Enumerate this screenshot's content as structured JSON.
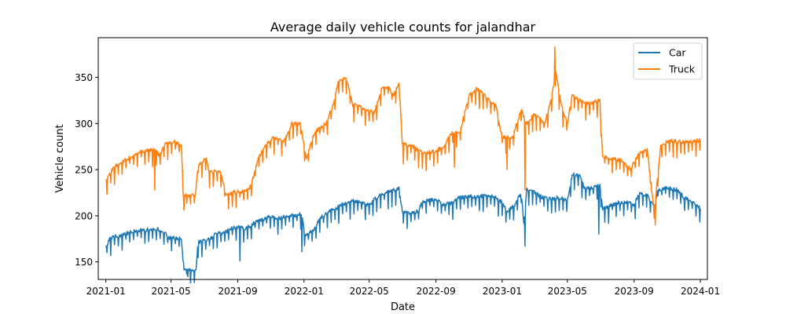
{
  "chart_data": {
    "type": "line",
    "title": "Average daily vehicle counts for jalandhar",
    "xlabel": "Date",
    "ylabel": "Vehicle count",
    "x_range": [
      "2020-12-18",
      "2024-01-14"
    ],
    "ylim": [
      131,
      393
    ],
    "x_ticks": [
      {
        "date": "2021-01-01",
        "label": "2021-01"
      },
      {
        "date": "2021-05-01",
        "label": "2021-05"
      },
      {
        "date": "2021-09-01",
        "label": "2021-09"
      },
      {
        "date": "2022-01-01",
        "label": "2022-01"
      },
      {
        "date": "2022-05-01",
        "label": "2022-05"
      },
      {
        "date": "2022-09-01",
        "label": "2022-09"
      },
      {
        "date": "2023-01-01",
        "label": "2023-01"
      },
      {
        "date": "2023-05-01",
        "label": "2023-05"
      },
      {
        "date": "2023-09-01",
        "label": "2023-09"
      },
      {
        "date": "2024-01-01",
        "label": "2024-01"
      }
    ],
    "y_ticks": [
      150,
      200,
      250,
      300,
      350
    ],
    "grid": false,
    "legend_position": "top-right",
    "series": [
      {
        "name": "Car",
        "color": "#1f77b4",
        "points": [
          [
            "2021-01-01",
            166
          ],
          [
            "2021-01-08",
            175
          ],
          [
            "2021-01-15",
            177
          ],
          [
            "2021-01-22",
            178
          ],
          [
            "2021-02-05",
            180
          ],
          [
            "2021-02-19",
            183
          ],
          [
            "2021-03-05",
            184
          ],
          [
            "2021-03-19",
            185
          ],
          [
            "2021-04-02",
            186
          ],
          [
            "2021-04-15",
            184
          ],
          [
            "2021-04-28",
            176
          ],
          [
            "2021-05-13",
            176
          ],
          [
            "2021-05-20",
            175
          ],
          [
            "2021-05-25",
            143
          ],
          [
            "2021-06-10",
            141
          ],
          [
            "2021-06-16",
            143
          ],
          [
            "2021-06-20",
            172
          ],
          [
            "2021-07-05",
            173
          ],
          [
            "2021-07-15",
            176
          ],
          [
            "2021-07-20",
            180
          ],
          [
            "2021-08-05",
            181
          ],
          [
            "2021-08-20",
            186
          ],
          [
            "2021-09-01",
            188
          ],
          [
            "2021-09-15",
            186
          ],
          [
            "2021-10-01",
            192
          ],
          [
            "2021-10-15",
            196
          ],
          [
            "2021-11-01",
            199
          ],
          [
            "2021-11-15",
            197
          ],
          [
            "2021-12-01",
            200
          ],
          [
            "2021-12-20",
            201
          ],
          [
            "2021-12-28",
            202
          ],
          [
            "2022-01-03",
            178
          ],
          [
            "2022-01-20",
            185
          ],
          [
            "2022-01-28",
            196
          ],
          [
            "2022-02-15",
            205
          ],
          [
            "2022-03-01",
            208
          ],
          [
            "2022-03-15",
            213
          ],
          [
            "2022-04-01",
            216
          ],
          [
            "2022-04-15",
            214
          ],
          [
            "2022-05-01",
            212
          ],
          [
            "2022-05-15",
            220
          ],
          [
            "2022-06-01",
            225
          ],
          [
            "2022-06-15",
            228
          ],
          [
            "2022-06-25",
            230
          ],
          [
            "2022-07-01",
            205
          ],
          [
            "2022-07-15",
            202
          ],
          [
            "2022-07-31",
            205
          ],
          [
            "2022-08-05",
            214
          ],
          [
            "2022-08-20",
            217
          ],
          [
            "2022-09-01",
            218
          ],
          [
            "2022-09-15",
            212
          ],
          [
            "2022-10-01",
            214
          ],
          [
            "2022-10-15",
            220
          ],
          [
            "2022-11-01",
            221
          ],
          [
            "2022-11-15",
            220
          ],
          [
            "2022-12-01",
            222
          ],
          [
            "2022-12-15",
            221
          ],
          [
            "2022-12-31",
            215
          ],
          [
            "2023-01-10",
            205
          ],
          [
            "2023-01-25",
            212
          ],
          [
            "2023-02-05",
            226
          ],
          [
            "2023-02-10",
            190
          ],
          [
            "2023-02-15",
            228
          ],
          [
            "2023-03-01",
            226
          ],
          [
            "2023-03-15",
            220
          ],
          [
            "2023-04-01",
            218
          ],
          [
            "2023-04-15",
            220
          ],
          [
            "2023-05-01",
            216
          ],
          [
            "2023-05-10",
            245
          ],
          [
            "2023-05-25",
            243
          ],
          [
            "2023-06-01",
            230
          ],
          [
            "2023-06-15",
            230
          ],
          [
            "2023-06-30",
            233
          ],
          [
            "2023-07-05",
            208
          ],
          [
            "2023-07-15",
            210
          ],
          [
            "2023-08-01",
            214
          ],
          [
            "2023-08-15",
            215
          ],
          [
            "2023-09-01",
            212
          ],
          [
            "2023-09-10",
            224
          ],
          [
            "2023-09-25",
            222
          ],
          [
            "2023-10-08",
            210
          ],
          [
            "2023-10-15",
            228
          ],
          [
            "2023-11-01",
            230
          ],
          [
            "2023-11-20",
            228
          ],
          [
            "2023-12-01",
            220
          ],
          [
            "2023-12-15",
            216
          ],
          [
            "2024-01-01",
            208
          ]
        ],
        "spikes": [
          [
            "2021-01-03",
            160
          ],
          [
            "2021-06-01",
            134
          ],
          [
            "2021-09-05",
            151
          ],
          [
            "2021-12-28",
            161
          ],
          [
            "2022-07-03",
            192
          ],
          [
            "2023-02-12",
            167
          ],
          [
            "2023-06-28",
            180
          ],
          [
            "2023-10-10",
            201
          ]
        ]
      },
      {
        "name": "Truck",
        "color": "#ff7f0e",
        "points": [
          [
            "2021-01-01",
            238
          ],
          [
            "2021-01-15",
            252
          ],
          [
            "2021-02-01",
            259
          ],
          [
            "2021-02-20",
            265
          ],
          [
            "2021-03-10",
            270
          ],
          [
            "2021-04-01",
            272
          ],
          [
            "2021-04-10",
            265
          ],
          [
            "2021-04-20",
            278
          ],
          [
            "2021-05-08",
            280
          ],
          [
            "2021-05-20",
            276
          ],
          [
            "2021-05-24",
            222
          ],
          [
            "2021-06-15",
            222
          ],
          [
            "2021-06-20",
            255
          ],
          [
            "2021-07-05",
            262
          ],
          [
            "2021-07-10",
            248
          ],
          [
            "2021-08-01",
            248
          ],
          [
            "2021-08-10",
            222
          ],
          [
            "2021-08-25",
            226
          ],
          [
            "2021-09-15",
            226
          ],
          [
            "2021-09-25",
            232
          ],
          [
            "2021-10-10",
            264
          ],
          [
            "2021-10-25",
            278
          ],
          [
            "2021-11-05",
            285
          ],
          [
            "2021-11-25",
            280
          ],
          [
            "2021-12-10",
            300
          ],
          [
            "2021-12-25",
            300
          ],
          [
            "2022-01-05",
            262
          ],
          [
            "2022-01-20",
            290
          ],
          [
            "2022-02-10",
            300
          ],
          [
            "2022-02-25",
            322
          ],
          [
            "2022-03-05",
            345
          ],
          [
            "2022-03-20",
            350
          ],
          [
            "2022-04-01",
            320
          ],
          [
            "2022-04-10",
            320
          ],
          [
            "2022-04-25",
            315
          ],
          [
            "2022-05-10",
            312
          ],
          [
            "2022-05-25",
            340
          ],
          [
            "2022-06-05",
            340
          ],
          [
            "2022-06-15",
            330
          ],
          [
            "2022-06-25",
            345
          ],
          [
            "2022-07-01",
            278
          ],
          [
            "2022-07-20",
            275
          ],
          [
            "2022-08-10",
            268
          ],
          [
            "2022-09-01",
            270
          ],
          [
            "2022-09-15",
            275
          ],
          [
            "2022-10-01",
            290
          ],
          [
            "2022-10-15",
            290
          ],
          [
            "2022-11-01",
            330
          ],
          [
            "2022-11-15",
            338
          ],
          [
            "2022-12-01",
            330
          ],
          [
            "2022-12-20",
            320
          ],
          [
            "2023-01-01",
            285
          ],
          [
            "2023-01-20",
            285
          ],
          [
            "2023-02-05",
            315
          ],
          [
            "2023-02-15",
            300
          ],
          [
            "2023-03-01",
            310
          ],
          [
            "2023-03-20",
            300
          ],
          [
            "2023-04-01",
            325
          ],
          [
            "2023-04-10",
            355
          ],
          [
            "2023-04-20",
            320
          ],
          [
            "2023-05-01",
            300
          ],
          [
            "2023-05-10",
            330
          ],
          [
            "2023-05-25",
            325
          ],
          [
            "2023-06-10",
            322
          ],
          [
            "2023-06-30",
            325
          ],
          [
            "2023-07-05",
            265
          ],
          [
            "2023-07-20",
            262
          ],
          [
            "2023-08-10",
            260
          ],
          [
            "2023-08-25",
            250
          ],
          [
            "2023-09-10",
            268
          ],
          [
            "2023-09-25",
            272
          ],
          [
            "2023-10-08",
            205
          ],
          [
            "2023-10-20",
            275
          ],
          [
            "2023-11-05",
            282
          ],
          [
            "2023-11-25",
            280
          ],
          [
            "2023-12-15",
            280
          ],
          [
            "2024-01-01",
            282
          ]
        ],
        "spikes": [
          [
            "2021-04-01",
            228
          ],
          [
            "2021-05-25",
            206
          ],
          [
            "2022-07-03",
            256
          ],
          [
            "2022-10-05",
            253
          ],
          [
            "2023-01-10",
            250
          ],
          [
            "2023-02-12",
            228
          ],
          [
            "2023-04-08",
            383
          ],
          [
            "2023-10-10",
            190
          ]
        ]
      }
    ]
  }
}
